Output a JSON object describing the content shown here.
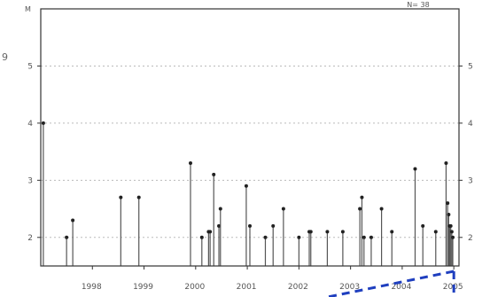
{
  "chart_data": {
    "type": "stem",
    "title": "",
    "xlabel": "",
    "ylabel": "",
    "corner_label": "M",
    "n_label": "N= 38",
    "side_glyph": "9",
    "x_start_year": 1997.0,
    "x_end_year": 2005.1,
    "ylim": [
      1.5,
      6.0
    ],
    "yticks": [
      2,
      3,
      4,
      5
    ],
    "ytick_labels": [
      "2",
      "3",
      "4",
      "5"
    ],
    "xticks": [
      1998,
      1999,
      2000,
      2001,
      2002,
      2003,
      2004,
      2005
    ],
    "xtick_labels": [
      "1998",
      "1999",
      "2000",
      "2001",
      "2002",
      "2003",
      "2004",
      "2005"
    ],
    "grid": true,
    "colors": {
      "stem": "#555555",
      "point": "#222222",
      "axis": "#333333",
      "grid": "#bbbbbb",
      "overlay": "#1f3fbf"
    },
    "points": [
      {
        "t": 1997.05,
        "m": 4.0
      },
      {
        "t": 1997.5,
        "m": 2.0
      },
      {
        "t": 1997.62,
        "m": 2.3
      },
      {
        "t": 1998.55,
        "m": 2.7
      },
      {
        "t": 1998.9,
        "m": 2.7
      },
      {
        "t": 1999.9,
        "m": 3.3
      },
      {
        "t": 2000.12,
        "m": 2.0
      },
      {
        "t": 2000.25,
        "m": 2.1
      },
      {
        "t": 2000.28,
        "m": 2.1
      },
      {
        "t": 2000.35,
        "m": 3.1
      },
      {
        "t": 2000.45,
        "m": 2.2
      },
      {
        "t": 2000.48,
        "m": 2.5
      },
      {
        "t": 2000.98,
        "m": 2.9
      },
      {
        "t": 2001.05,
        "m": 2.2
      },
      {
        "t": 2001.35,
        "m": 2.0
      },
      {
        "t": 2001.5,
        "m": 2.2
      },
      {
        "t": 2001.7,
        "m": 2.5
      },
      {
        "t": 2002.0,
        "m": 2.0
      },
      {
        "t": 2002.2,
        "m": 2.1
      },
      {
        "t": 2002.23,
        "m": 2.1
      },
      {
        "t": 2002.55,
        "m": 2.1
      },
      {
        "t": 2002.85,
        "m": 2.1
      },
      {
        "t": 2003.18,
        "m": 2.5
      },
      {
        "t": 2003.22,
        "m": 2.7
      },
      {
        "t": 2003.26,
        "m": 2.0
      },
      {
        "t": 2003.4,
        "m": 2.0
      },
      {
        "t": 2003.6,
        "m": 2.5
      },
      {
        "t": 2003.8,
        "m": 2.1
      },
      {
        "t": 2004.25,
        "m": 3.2
      },
      {
        "t": 2004.4,
        "m": 2.2
      },
      {
        "t": 2004.65,
        "m": 2.1
      },
      {
        "t": 2004.85,
        "m": 3.3
      },
      {
        "t": 2004.88,
        "m": 2.6
      },
      {
        "t": 2004.9,
        "m": 2.4
      },
      {
        "t": 2004.92,
        "m": 2.2
      },
      {
        "t": 2004.94,
        "m": 2.2
      },
      {
        "t": 2004.96,
        "m": 2.1
      },
      {
        "t": 2004.98,
        "m": 2.0
      }
    ],
    "overlay": {
      "shape": "dashed-box-corner",
      "corner_t": 2005.0
    }
  }
}
